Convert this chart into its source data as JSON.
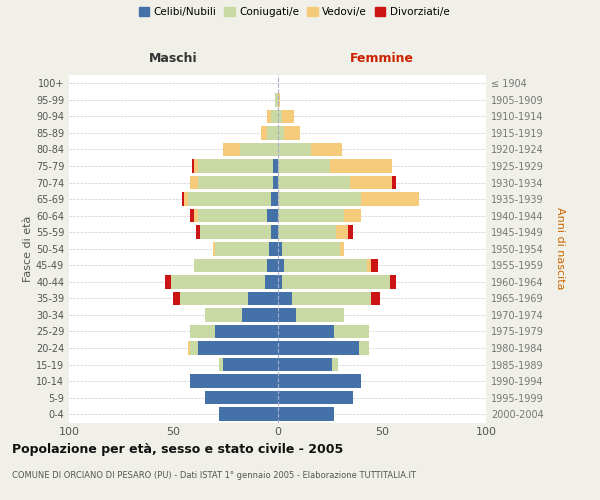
{
  "age_groups": [
    "0-4",
    "5-9",
    "10-14",
    "15-19",
    "20-24",
    "25-29",
    "30-34",
    "35-39",
    "40-44",
    "45-49",
    "50-54",
    "55-59",
    "60-64",
    "65-69",
    "70-74",
    "75-79",
    "80-84",
    "85-89",
    "90-94",
    "95-99",
    "100+"
  ],
  "birth_years": [
    "2000-2004",
    "1995-1999",
    "1990-1994",
    "1985-1989",
    "1980-1984",
    "1975-1979",
    "1970-1974",
    "1965-1969",
    "1960-1964",
    "1955-1959",
    "1950-1954",
    "1945-1949",
    "1940-1944",
    "1935-1939",
    "1930-1934",
    "1925-1929",
    "1920-1924",
    "1915-1919",
    "1910-1914",
    "1905-1909",
    "≤ 1904"
  ],
  "male": {
    "celibi": [
      28,
      35,
      42,
      26,
      38,
      30,
      17,
      14,
      6,
      5,
      4,
      3,
      5,
      3,
      2,
      2,
      0,
      0,
      0,
      0,
      0
    ],
    "coniugati": [
      0,
      0,
      0,
      2,
      4,
      12,
      18,
      33,
      45,
      35,
      26,
      34,
      33,
      40,
      36,
      36,
      18,
      5,
      3,
      1,
      0
    ],
    "vedovi": [
      0,
      0,
      0,
      0,
      1,
      0,
      0,
      0,
      0,
      0,
      1,
      0,
      2,
      2,
      4,
      2,
      8,
      3,
      2,
      0,
      0
    ],
    "divorziati": [
      0,
      0,
      0,
      0,
      0,
      0,
      0,
      3,
      3,
      0,
      0,
      2,
      2,
      1,
      0,
      1,
      0,
      0,
      0,
      0,
      0
    ]
  },
  "female": {
    "nubili": [
      27,
      36,
      40,
      26,
      39,
      27,
      9,
      7,
      2,
      3,
      2,
      0,
      0,
      0,
      0,
      0,
      0,
      0,
      0,
      0,
      0
    ],
    "coniugate": [
      0,
      0,
      0,
      3,
      5,
      17,
      23,
      38,
      52,
      40,
      28,
      28,
      32,
      40,
      35,
      25,
      16,
      3,
      2,
      0,
      0
    ],
    "vedove": [
      0,
      0,
      0,
      0,
      0,
      0,
      0,
      0,
      0,
      2,
      2,
      6,
      8,
      28,
      20,
      30,
      15,
      8,
      6,
      1,
      0
    ],
    "divorziate": [
      0,
      0,
      0,
      0,
      0,
      0,
      0,
      4,
      3,
      3,
      0,
      2,
      0,
      0,
      2,
      0,
      0,
      0,
      0,
      0,
      0
    ]
  },
  "colors": {
    "celibi": "#4472a8",
    "coniugati": "#c8d9a4",
    "vedovi": "#f5ca7a",
    "divorziati": "#cc1414"
  },
  "xlim": 100,
  "title": "Popolazione per età, sesso e stato civile - 2005",
  "subtitle": "COMUNE DI ORCIANO DI PESARO (PU) - Dati ISTAT 1° gennaio 2005 - Elaborazione TUTTITALIA.IT",
  "xlabel_left": "Maschi",
  "xlabel_right": "Femmine",
  "ylabel_left": "Fasce di età",
  "ylabel_right": "Anni di nascita",
  "legend_labels": [
    "Celibi/Nubili",
    "Coniugati/e",
    "Vedovi/e",
    "Divorziati/e"
  ],
  "bg_color": "#f0f0e8",
  "plot_bg": "#ffffff"
}
